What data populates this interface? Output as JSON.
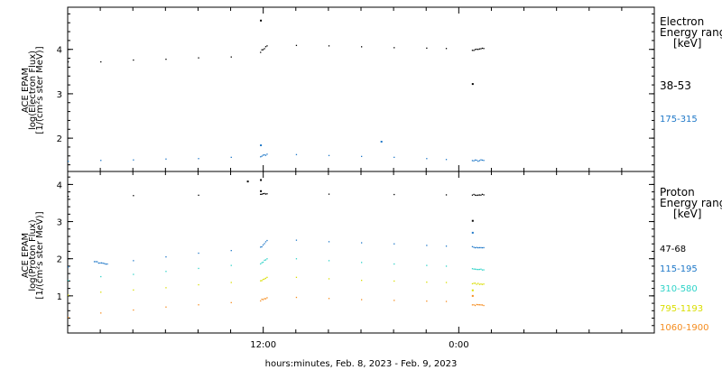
{
  "chart_data": [
    {
      "type": "scatter",
      "panel": "electron",
      "ylabel_lines": [
        "ACE EPAM",
        "log(Electron Flux)",
        "[1/(cm²s ster MeV)]"
      ],
      "legend_title": [
        "Electron",
        "Energy range",
        "[keV]"
      ],
      "ylim": [
        1.25,
        4.95
      ],
      "yticks": [
        2,
        3,
        4
      ],
      "ytick_labels": [
        "2",
        "3",
        "4"
      ],
      "series": [
        {
          "name": "38-53",
          "color": "#000000",
          "points": [
            [
              0.0,
              3.72
            ],
            [
              1.0,
              3.72
            ],
            [
              2.0,
              3.76
            ],
            [
              3.0,
              3.78
            ],
            [
              4.0,
              3.81
            ],
            [
              5.0,
              3.83
            ],
            [
              5.9,
              3.95
            ],
            [
              6.1,
              4.08
            ],
            [
              7.0,
              4.09
            ],
            [
              8.0,
              4.08
            ],
            [
              9.0,
              4.06
            ],
            [
              10.0,
              4.04
            ],
            [
              11.0,
              4.03
            ],
            [
              11.6,
              4.02
            ],
            [
              12.4,
              3.98
            ],
            [
              12.75,
              4.02
            ]
          ],
          "outliers": [
            [
              5.9,
              4.65
            ],
            [
              12.4,
              3.22
            ]
          ]
        },
        {
          "name": "175-315",
          "color": "#1f78c8",
          "points": [
            [
              0.0,
              1.48
            ],
            [
              1.0,
              1.5
            ],
            [
              2.0,
              1.51
            ],
            [
              3.0,
              1.53
            ],
            [
              4.0,
              1.54
            ],
            [
              5.0,
              1.57
            ],
            [
              5.9,
              1.59
            ],
            [
              6.1,
              1.64
            ],
            [
              7.0,
              1.63
            ],
            [
              8.0,
              1.61
            ],
            [
              9.0,
              1.59
            ],
            [
              10.0,
              1.57
            ],
            [
              11.0,
              1.54
            ],
            [
              11.6,
              1.52
            ],
            [
              12.4,
              1.49
            ],
            [
              12.75,
              1.5
            ]
          ],
          "outliers": [
            [
              5.9,
              1.84
            ],
            [
              9.6,
              1.92
            ]
          ]
        }
      ]
    },
    {
      "type": "scatter",
      "panel": "proton",
      "ylabel_lines": [
        "ACE EPAM",
        "log(Proton Flux)",
        "[1/(cm²s ster MeV)]"
      ],
      "legend_title": [
        "Proton",
        "Energy range",
        "[keV]"
      ],
      "ylim": [
        0.0,
        4.35
      ],
      "yticks": [
        1,
        2,
        3,
        4
      ],
      "ytick_labels": [
        "1",
        "2",
        "3",
        "4"
      ],
      "xlabel": "hours:minutes, Feb.  8, 2023 - Feb.  9, 2023",
      "xlim": [
        0,
        18
      ],
      "xticks": [
        6,
        12
      ],
      "xtick_labels": [
        "12:00",
        "0:00"
      ],
      "series": [
        {
          "name": "47-68",
          "color": "#000000",
          "points": [
            [
              0.0,
              3.68
            ],
            [
              2.0,
              3.7
            ],
            [
              4.0,
              3.71
            ],
            [
              5.9,
              3.73
            ],
            [
              6.1,
              3.75
            ],
            [
              8.0,
              3.74
            ],
            [
              10.0,
              3.73
            ],
            [
              11.6,
              3.72
            ],
            [
              12.4,
              3.72
            ],
            [
              12.75,
              3.72
            ]
          ],
          "outliers": [
            [
              5.5,
              4.08
            ],
            [
              5.9,
              4.12
            ],
            [
              5.9,
              3.82
            ],
            [
              12.4,
              3.02
            ]
          ]
        },
        {
          "name": "115-195",
          "color": "#1f78c8",
          "points": [
            [
              0.0,
              1.78
            ],
            [
              0.8,
              1.92
            ],
            [
              1.2,
              1.86
            ],
            [
              2.0,
              1.95
            ],
            [
              3.0,
              2.05
            ],
            [
              4.0,
              2.15
            ],
            [
              5.0,
              2.22
            ],
            [
              5.9,
              2.3
            ],
            [
              6.1,
              2.49
            ],
            [
              7.0,
              2.5
            ],
            [
              8.0,
              2.46
            ],
            [
              9.0,
              2.43
            ],
            [
              10.0,
              2.4
            ],
            [
              11.0,
              2.36
            ],
            [
              11.6,
              2.34
            ],
            [
              12.4,
              2.31
            ],
            [
              12.75,
              2.3
            ]
          ],
          "outliers": [
            [
              12.4,
              2.7
            ]
          ]
        },
        {
          "name": "310-580",
          "color": "#2fd3c8",
          "points": [
            [
              0.0,
              1.42
            ],
            [
              1.0,
              1.52
            ],
            [
              2.0,
              1.58
            ],
            [
              3.0,
              1.66
            ],
            [
              4.0,
              1.74
            ],
            [
              5.0,
              1.82
            ],
            [
              5.9,
              1.86
            ],
            [
              6.1,
              2.0
            ],
            [
              7.0,
              2.0
            ],
            [
              8.0,
              1.95
            ],
            [
              9.0,
              1.9
            ],
            [
              10.0,
              1.86
            ],
            [
              11.0,
              1.82
            ],
            [
              11.6,
              1.8
            ],
            [
              12.4,
              1.72
            ],
            [
              12.75,
              1.7
            ]
          ],
          "outliers": []
        },
        {
          "name": "795-1193",
          "color": "#d9de00",
          "points": [
            [
              0.0,
              1.02
            ],
            [
              1.0,
              1.1
            ],
            [
              2.0,
              1.16
            ],
            [
              3.0,
              1.22
            ],
            [
              4.0,
              1.3
            ],
            [
              5.0,
              1.36
            ],
            [
              5.9,
              1.4
            ],
            [
              6.1,
              1.5
            ],
            [
              7.0,
              1.5
            ],
            [
              8.0,
              1.46
            ],
            [
              9.0,
              1.42
            ],
            [
              10.0,
              1.4
            ],
            [
              11.0,
              1.37
            ],
            [
              11.6,
              1.36
            ],
            [
              12.4,
              1.33
            ],
            [
              12.75,
              1.32
            ]
          ],
          "outliers": [
            [
              12.4,
              1.15
            ]
          ]
        },
        {
          "name": "1060-1900",
          "color": "#f58c1e",
          "points": [
            [
              0.0,
              0.42
            ],
            [
              1.0,
              0.54
            ],
            [
              2.0,
              0.62
            ],
            [
              3.0,
              0.7
            ],
            [
              4.0,
              0.76
            ],
            [
              5.0,
              0.82
            ],
            [
              5.9,
              0.88
            ],
            [
              6.1,
              0.95
            ],
            [
              7.0,
              0.96
            ],
            [
              8.0,
              0.93
            ],
            [
              9.0,
              0.9
            ],
            [
              10.0,
              0.88
            ],
            [
              11.0,
              0.86
            ],
            [
              11.6,
              0.85
            ],
            [
              12.4,
              0.76
            ],
            [
              12.75,
              0.74
            ]
          ],
          "outliers": [
            [
              12.4,
              1.0
            ]
          ]
        }
      ]
    }
  ]
}
